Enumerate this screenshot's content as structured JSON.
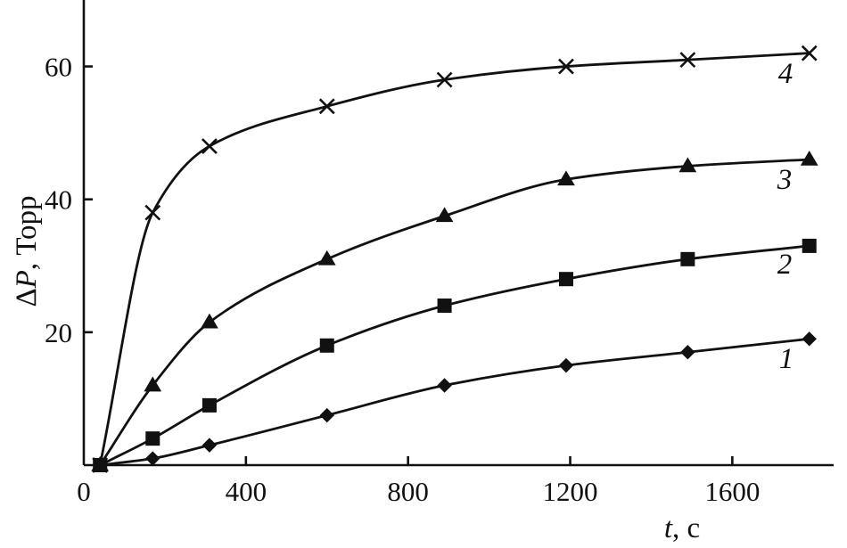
{
  "chart_data": {
    "type": "line",
    "title": "",
    "xlabel_var": "t",
    "xlabel_unit": ", с",
    "ylabel_prefix": "Δ",
    "ylabel_var": "P",
    "ylabel_unit": ", Торр",
    "xlim": [
      0,
      1850
    ],
    "ylim": [
      0,
      70
    ],
    "x_ticks": [
      0,
      400,
      800,
      1200,
      1600
    ],
    "y_ticks": [
      20,
      40,
      60
    ],
    "grid": false,
    "legend": "none",
    "series": [
      {
        "label": "1",
        "marker": "diamond",
        "x": [
          40,
          170,
          310,
          600,
          890,
          1190,
          1490,
          1790
        ],
        "y": [
          0,
          1,
          3,
          7.5,
          12,
          15,
          17,
          19
        ]
      },
      {
        "label": "2",
        "marker": "square",
        "x": [
          40,
          170,
          310,
          600,
          890,
          1190,
          1490,
          1790
        ],
        "y": [
          0,
          4,
          9,
          18,
          24,
          28,
          31,
          33
        ]
      },
      {
        "label": "3",
        "marker": "triangle",
        "x": [
          40,
          170,
          310,
          600,
          890,
          1190,
          1490,
          1790
        ],
        "y": [
          0,
          12,
          21.5,
          31,
          37.5,
          43,
          45,
          46
        ]
      },
      {
        "label": "4",
        "marker": "cross",
        "x": [
          40,
          170,
          310,
          600,
          890,
          1190,
          1490,
          1790
        ],
        "y": [
          0,
          38,
          48,
          54,
          58,
          60,
          61,
          62
        ]
      }
    ]
  }
}
